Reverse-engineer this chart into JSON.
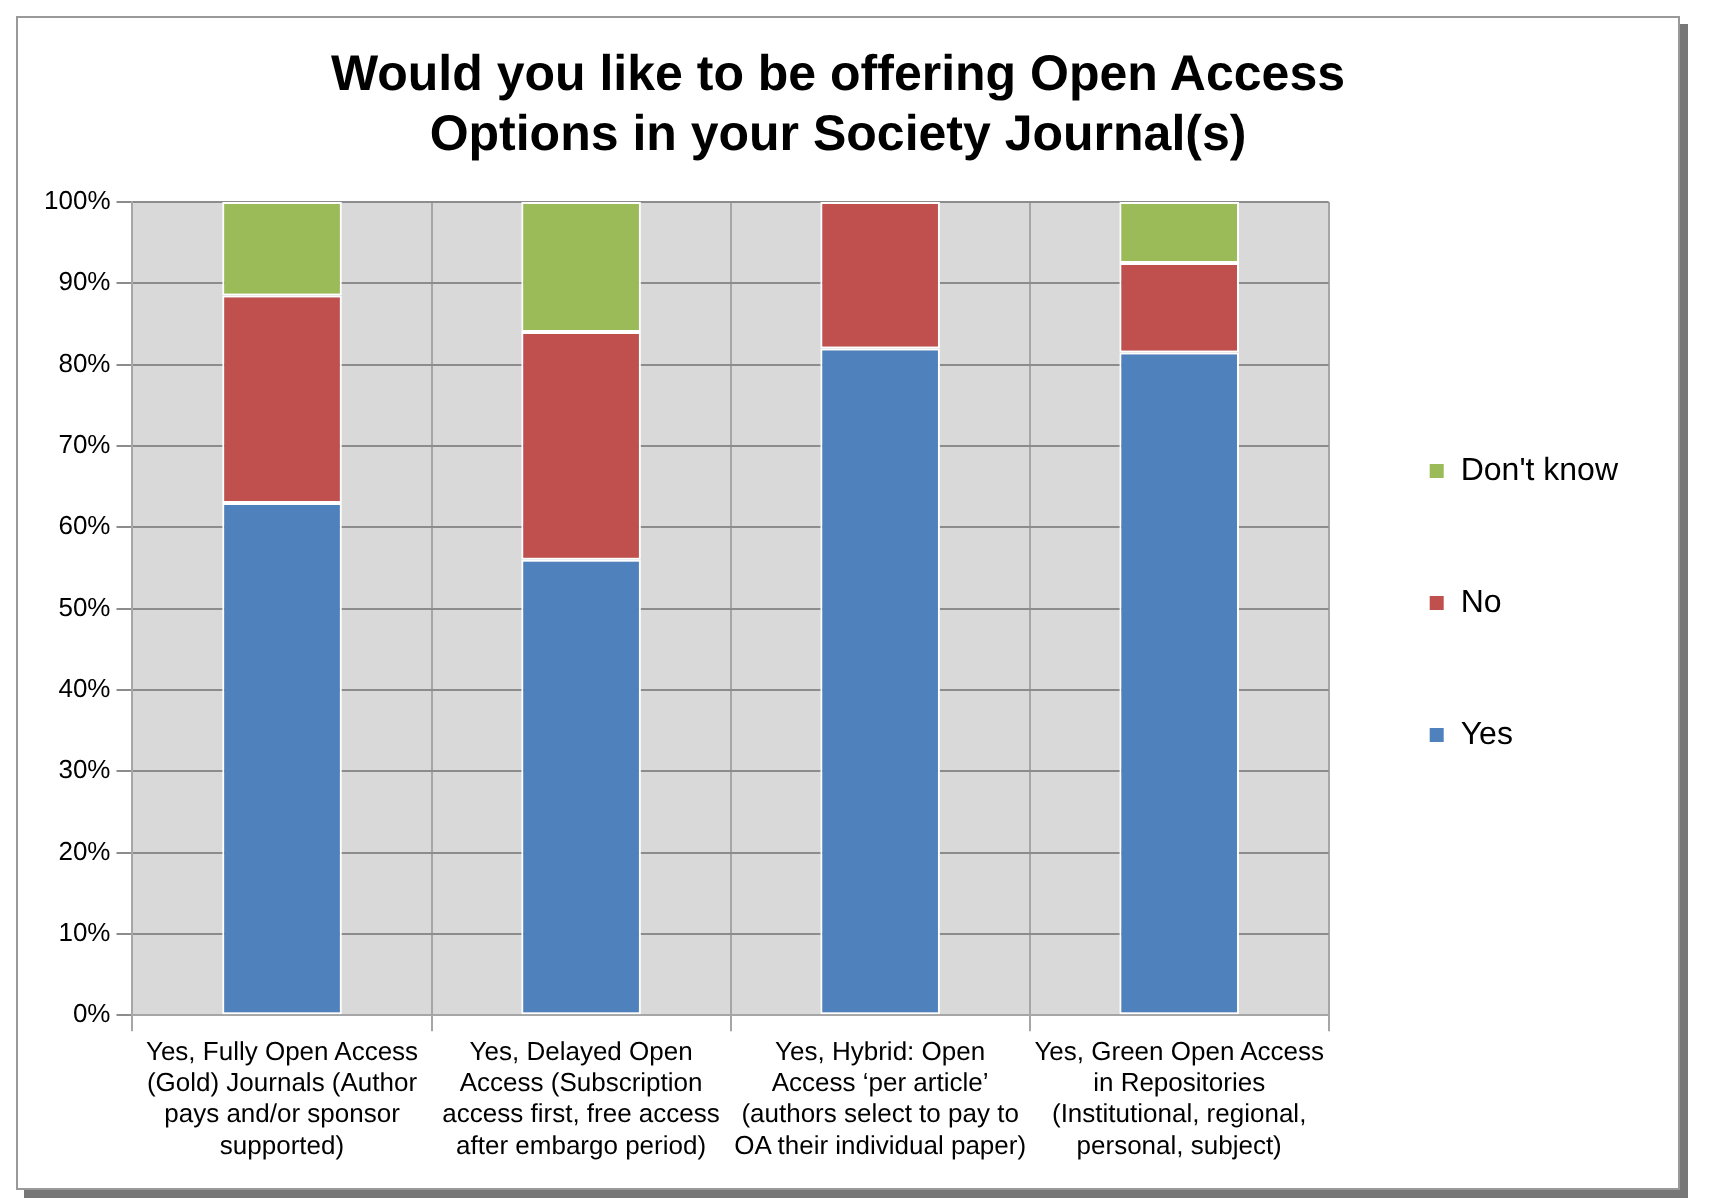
{
  "chart_data": {
    "type": "bar",
    "title": "Would you like to be offering Open Access Options in your Society Journal(s)",
    "categories": [
      "Yes, Fully Open Access (Gold) Journals (Author pays and/or sponsor supported)",
      "Yes, Delayed Open Access (Subscription access first, free access after embargo period)",
      "Yes, Hybrid: Open Access ‘per article’ (authors select to pay to OA their individual paper)",
      "Yes, Green Open Access in Repositories (Institutional, regional, personal, subject)"
    ],
    "series": [
      {
        "name": "Yes",
        "color": "#4f81bd",
        "values": [
          63,
          56,
          82,
          81.5
        ]
      },
      {
        "name": "No",
        "color": "#c0504d",
        "values": [
          25.5,
          28,
          18,
          11
        ]
      },
      {
        "name": "Don't know",
        "color": "#9bbb59",
        "values": [
          11.5,
          16,
          0,
          7.5
        ]
      }
    ],
    "stacked": true,
    "ylim": [
      0,
      100
    ],
    "yticks": [
      {
        "value": 0,
        "label": "0%"
      },
      {
        "value": 10,
        "label": "10%"
      },
      {
        "value": 20,
        "label": "20%"
      },
      {
        "value": 30,
        "label": "30%"
      },
      {
        "value": 40,
        "label": "40%"
      },
      {
        "value": 50,
        "label": "50%"
      },
      {
        "value": 60,
        "label": "60%"
      },
      {
        "value": 70,
        "label": "70%"
      },
      {
        "value": 80,
        "label": "80%"
      },
      {
        "value": 90,
        "label": "90%"
      },
      {
        "value": 100,
        "label": "100%"
      }
    ],
    "grid": true,
    "legend": "right"
  }
}
